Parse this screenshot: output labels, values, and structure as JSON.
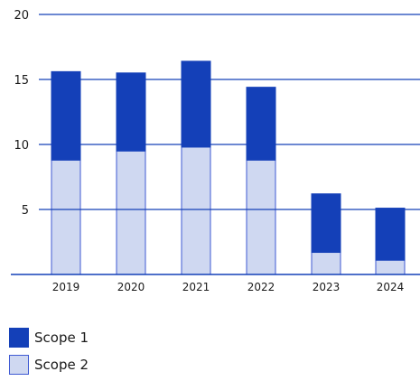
{
  "chart_data": {
    "type": "bar",
    "stacked": true,
    "categories": [
      "2019",
      "2020",
      "2021",
      "2022",
      "2023",
      "2024"
    ],
    "series": [
      {
        "name": "Scope 2",
        "values": [
          8.8,
          9.5,
          9.8,
          8.8,
          1.7,
          1.1
        ],
        "color": "#cfd8f1",
        "stroke": "#3f5ad3"
      },
      {
        "name": "Scope 1",
        "values": [
          6.8,
          6.0,
          6.6,
          5.6,
          4.5,
          4.0
        ],
        "color": "#1440b8",
        "stroke": "#1440b8"
      }
    ],
    "ylim": [
      0,
      20
    ],
    "yticks": [
      "5",
      "10",
      "15",
      "20"
    ],
    "grid": true,
    "legend_position": "bottom-left",
    "legend": [
      {
        "label": "Scope 1",
        "color": "#1440b8"
      },
      {
        "label": "Scope 2",
        "color": "#cfd8f1"
      }
    ]
  }
}
